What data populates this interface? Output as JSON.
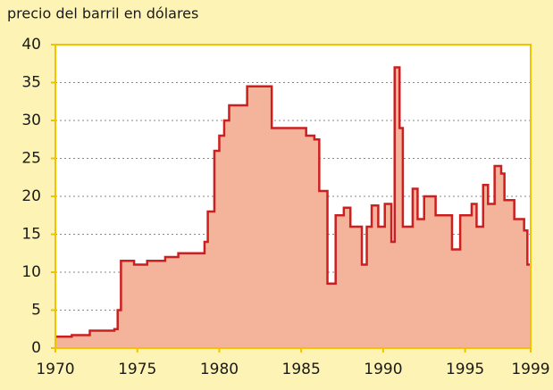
{
  "chart_data": {
    "type": "step-area",
    "title": "precio del barril en dólares",
    "step": "post",
    "x": [
      1970.0,
      1971.0,
      1972.1,
      1973.6,
      1973.8,
      1974.0,
      1974.8,
      1975.6,
      1976.7,
      1977.5,
      1979.1,
      1979.3,
      1979.7,
      1980.0,
      1980.3,
      1980.6,
      1981.7,
      1983.2,
      1985.3,
      1985.8,
      1986.1,
      1986.6,
      1987.1,
      1987.6,
      1988.0,
      1988.7,
      1989.0,
      1989.3,
      1989.7,
      1990.1,
      1990.5,
      1990.7,
      1991.0,
      1991.2,
      1991.8,
      1992.1,
      1992.5,
      1993.2,
      1994.2,
      1994.7,
      1995.4,
      1995.7,
      1996.1,
      1996.4,
      1996.8,
      1997.2,
      1997.4,
      1998.0,
      1998.6,
      1998.8
    ],
    "values": [
      1.5,
      1.7,
      2.3,
      2.5,
      5,
      11.5,
      11,
      11.5,
      12,
      12.5,
      14,
      18,
      26,
      28,
      30,
      32,
      34.5,
      29,
      28,
      27.5,
      20.7,
      8.5,
      17.5,
      18.5,
      16,
      11,
      16,
      18.8,
      16,
      19,
      14,
      37,
      29,
      16,
      21,
      17,
      20,
      17.5,
      13,
      17.5,
      19,
      16,
      21.5,
      19,
      24,
      23,
      19.5,
      17,
      15.5,
      11
    ],
    "line_color": "#cc1f1f",
    "fill_color": "#f4b49c",
    "xlim": [
      1970,
      1999
    ],
    "ylim": [
      0,
      40
    ],
    "xticks": [
      1970,
      1975,
      1980,
      1985,
      1990,
      1995,
      1999
    ],
    "yticks": [
      0,
      5,
      10,
      15,
      20,
      25,
      30,
      35,
      40
    ],
    "grid": true
  }
}
